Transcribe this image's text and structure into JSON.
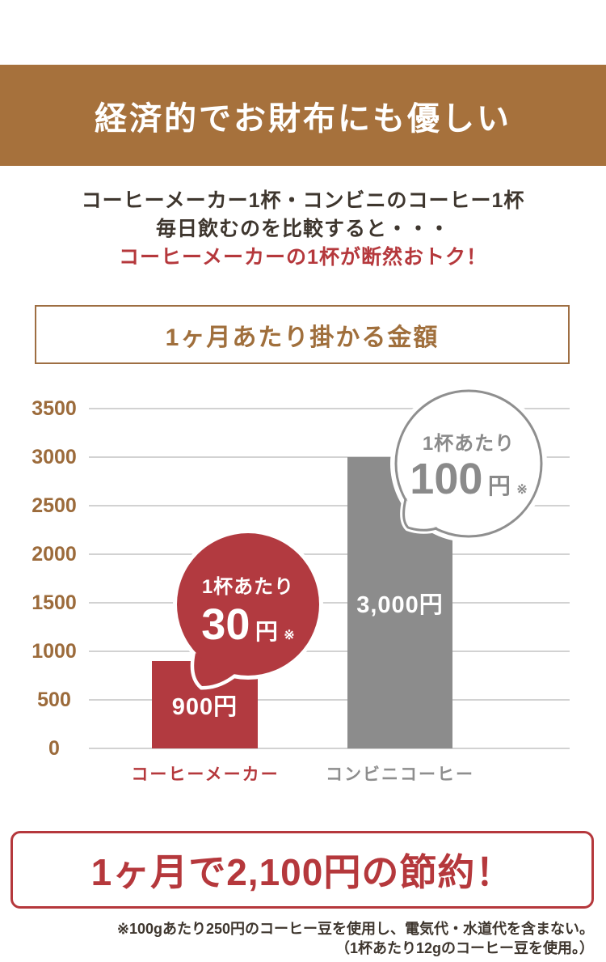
{
  "banner": {
    "title": "経済的でお財布にも優しい",
    "bg_color": "#a6713c",
    "text_color": "#ffffff"
  },
  "intro": {
    "line1": "コーヒーメーカー1杯・コンビニのコーヒー1杯",
    "line2": "毎日飲むのを比較すると・・・",
    "highlight": "コーヒーメーカーの1杯が断然おトク！",
    "text_color": "#3e362e",
    "highlight_color": "#b5383c"
  },
  "chart_data": {
    "type": "bar",
    "title": "1ヶ月あたり掛かる金額",
    "title_color": "#a06f3c",
    "categories": [
      "コーヒーメーカー",
      "コンビニコーヒー"
    ],
    "values": [
      900,
      3000
    ],
    "bar_labels": [
      "900円",
      "3,000円"
    ],
    "bar_colors": [
      "#b23a40",
      "#8c8c8c"
    ],
    "category_label_colors": [
      "#b5383c",
      "#8e8e8e"
    ],
    "xlabel": "",
    "ylabel": "",
    "ylim": [
      0,
      3500
    ],
    "ytick_interval": 500,
    "yticks": [
      3500,
      3000,
      2500,
      2000,
      1500,
      1000,
      500,
      0
    ],
    "grid": true,
    "gridline_color": "#d2d2d2",
    "tick_label_color": "#9c6b3b",
    "legend_position": "none",
    "annotations": [
      {
        "target": "コーヒーメーカー",
        "line1": "1杯あたり",
        "value": "30",
        "unit": "円",
        "note": "※",
        "bubble_fill": "#b23a40",
        "text_color": "#ffffff"
      },
      {
        "target": "コンビニコーヒー",
        "line1": "1杯あたり",
        "value": "100",
        "unit": "円",
        "note": "※",
        "bubble_fill": "#ffffff",
        "bubble_border": "#8f8f8f",
        "text_color": "#8a8a8a"
      }
    ]
  },
  "savings": {
    "text": "1ヶ月で2,100円の節約！",
    "color": "#b5383c"
  },
  "footnote": {
    "line1": "※100gあたり250円のコーヒー豆を使用し、電気代・水道代を含まない。",
    "line2": "（1杯あたり12gのコーヒー豆を使用。）",
    "color": "#3e362e"
  }
}
